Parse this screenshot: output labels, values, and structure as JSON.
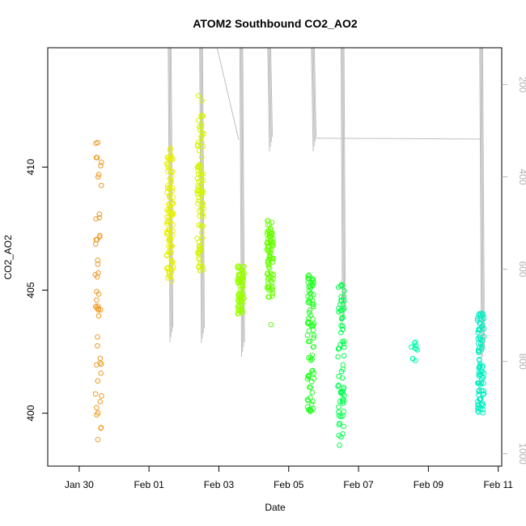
{
  "chart_data": {
    "type": "scatter",
    "title": "ATOM2 Southbound CO2_AO2",
    "xlabel": "Date",
    "ylabel": "CO2_AO2",
    "x_ticks": [
      "Jan 30",
      "Feb 01",
      "Feb 03",
      "Feb 05",
      "Feb 07",
      "Feb 09",
      "Feb 11"
    ],
    "y_ticks": [
      "400",
      "405",
      "410"
    ],
    "y2_ticks": [
      "200",
      "400",
      "600",
      "800",
      "1000"
    ],
    "xlim_days": [
      -2.45,
      10.55
    ],
    "ylim": [
      397.85,
      414.85
    ],
    "y2lim": [
      1027,
      120
    ],
    "colors": {
      "points_start": "#ff8c00",
      "points_end": "#00e6b8",
      "profile_line": "#bfbfbf",
      "axis_right": "#b3b3b3"
    },
    "series": [
      {
        "day": -1.0,
        "y_min": 398.1,
        "y_max": 410.9,
        "n": 45,
        "color": "#f09a22",
        "extras": [
          410.97,
          411.0,
          409.7,
          409.6
        ]
      },
      {
        "day": 1.05,
        "y_min": 405.3,
        "y_max": 410.9,
        "n": 90,
        "color": "#e6f000",
        "extras": []
      },
      {
        "day": 1.92,
        "y_min": 405.8,
        "y_max": 412.3,
        "n": 90,
        "color": "#d4f500",
        "extras": [
          412.7,
          412.9
        ]
      },
      {
        "day": 3.08,
        "y_min": 404.0,
        "y_max": 406.0,
        "n": 70,
        "color": "#99ff00",
        "extras": []
      },
      {
        "day": 3.92,
        "y_min": 404.6,
        "y_max": 407.9,
        "n": 80,
        "color": "#66ff00",
        "extras": [
          403.6
        ]
      },
      {
        "day": 5.08,
        "y_min": 400.0,
        "y_max": 405.8,
        "n": 80,
        "color": "#22ff22",
        "extras": []
      },
      {
        "day": 5.95,
        "y_min": 399.0,
        "y_max": 405.6,
        "n": 70,
        "color": "#00ff4d",
        "extras": [
          398.7
        ]
      },
      {
        "day": 8.05,
        "y_min": 402.1,
        "y_max": 402.9,
        "n": 10,
        "color": "#00ffaa",
        "extras": []
      },
      {
        "day": 9.95,
        "y_min": 400.0,
        "y_max": 404.1,
        "n": 85,
        "color": "#00eec0",
        "extras": []
      }
    ],
    "profile_lines": {
      "note_only_for_script": false,
      "segments": [
        {
          "from": [
            1.0,
            120
          ],
          "to": [
            1.05,
            758
          ]
        },
        {
          "from": [
            1.9,
            120
          ],
          "to": [
            1.95,
            760
          ]
        },
        {
          "from": [
            2.4,
            120
          ],
          "to": [
            3.02,
            320
          ]
        },
        {
          "from": [
            3.05,
            120
          ],
          "to": [
            3.1,
            790
          ]
        },
        {
          "from": [
            3.85,
            120
          ],
          "to": [
            3.9,
            345
          ]
        },
        {
          "from": [
            5.1,
            120
          ],
          "to": [
            5.15,
            345
          ]
        },
        {
          "from": [
            5.95,
            120
          ],
          "to": [
            5.99,
            720
          ]
        },
        {
          "from": [
            5.2,
            316
          ],
          "to": [
            9.92,
            318
          ]
        },
        {
          "from": [
            9.92,
            120
          ],
          "to": [
            9.97,
            800
          ]
        }
      ]
    }
  }
}
